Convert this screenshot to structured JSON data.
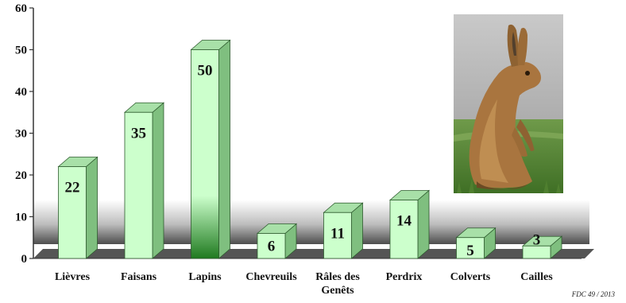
{
  "chart_data": {
    "type": "bar",
    "title": "",
    "xlabel": "",
    "ylabel": "",
    "ylim": [
      0,
      60
    ],
    "yticks": [
      0,
      10,
      20,
      30,
      40,
      50,
      60
    ],
    "categories": [
      "Lièvres",
      "Faisans",
      "Lapins",
      "Chevreuils",
      "Râles des Genêts",
      "Perdrix",
      "Colverts",
      "Cailles"
    ],
    "category_lines": [
      [
        "Lièvres"
      ],
      [
        "Faisans"
      ],
      [
        "Lapins"
      ],
      [
        "Chevreuils"
      ],
      [
        "Râles des",
        "Genêts"
      ],
      [
        "Perdrix"
      ],
      [
        "Colverts"
      ],
      [
        "Cailles"
      ]
    ],
    "values": [
      22,
      35,
      50,
      6,
      11,
      14,
      5,
      3
    ],
    "data_labels": [
      "22",
      "35",
      "50",
      "6",
      "11",
      "14",
      "5",
      "3"
    ],
    "grid": false,
    "legend": "none",
    "bar_color": "#ccffcc",
    "highlight_bar_color": "#2e8b2e",
    "highlight_index": 2
  },
  "photo": {
    "subject": "hare-photo"
  },
  "credit": "FDC 49 / 2013"
}
